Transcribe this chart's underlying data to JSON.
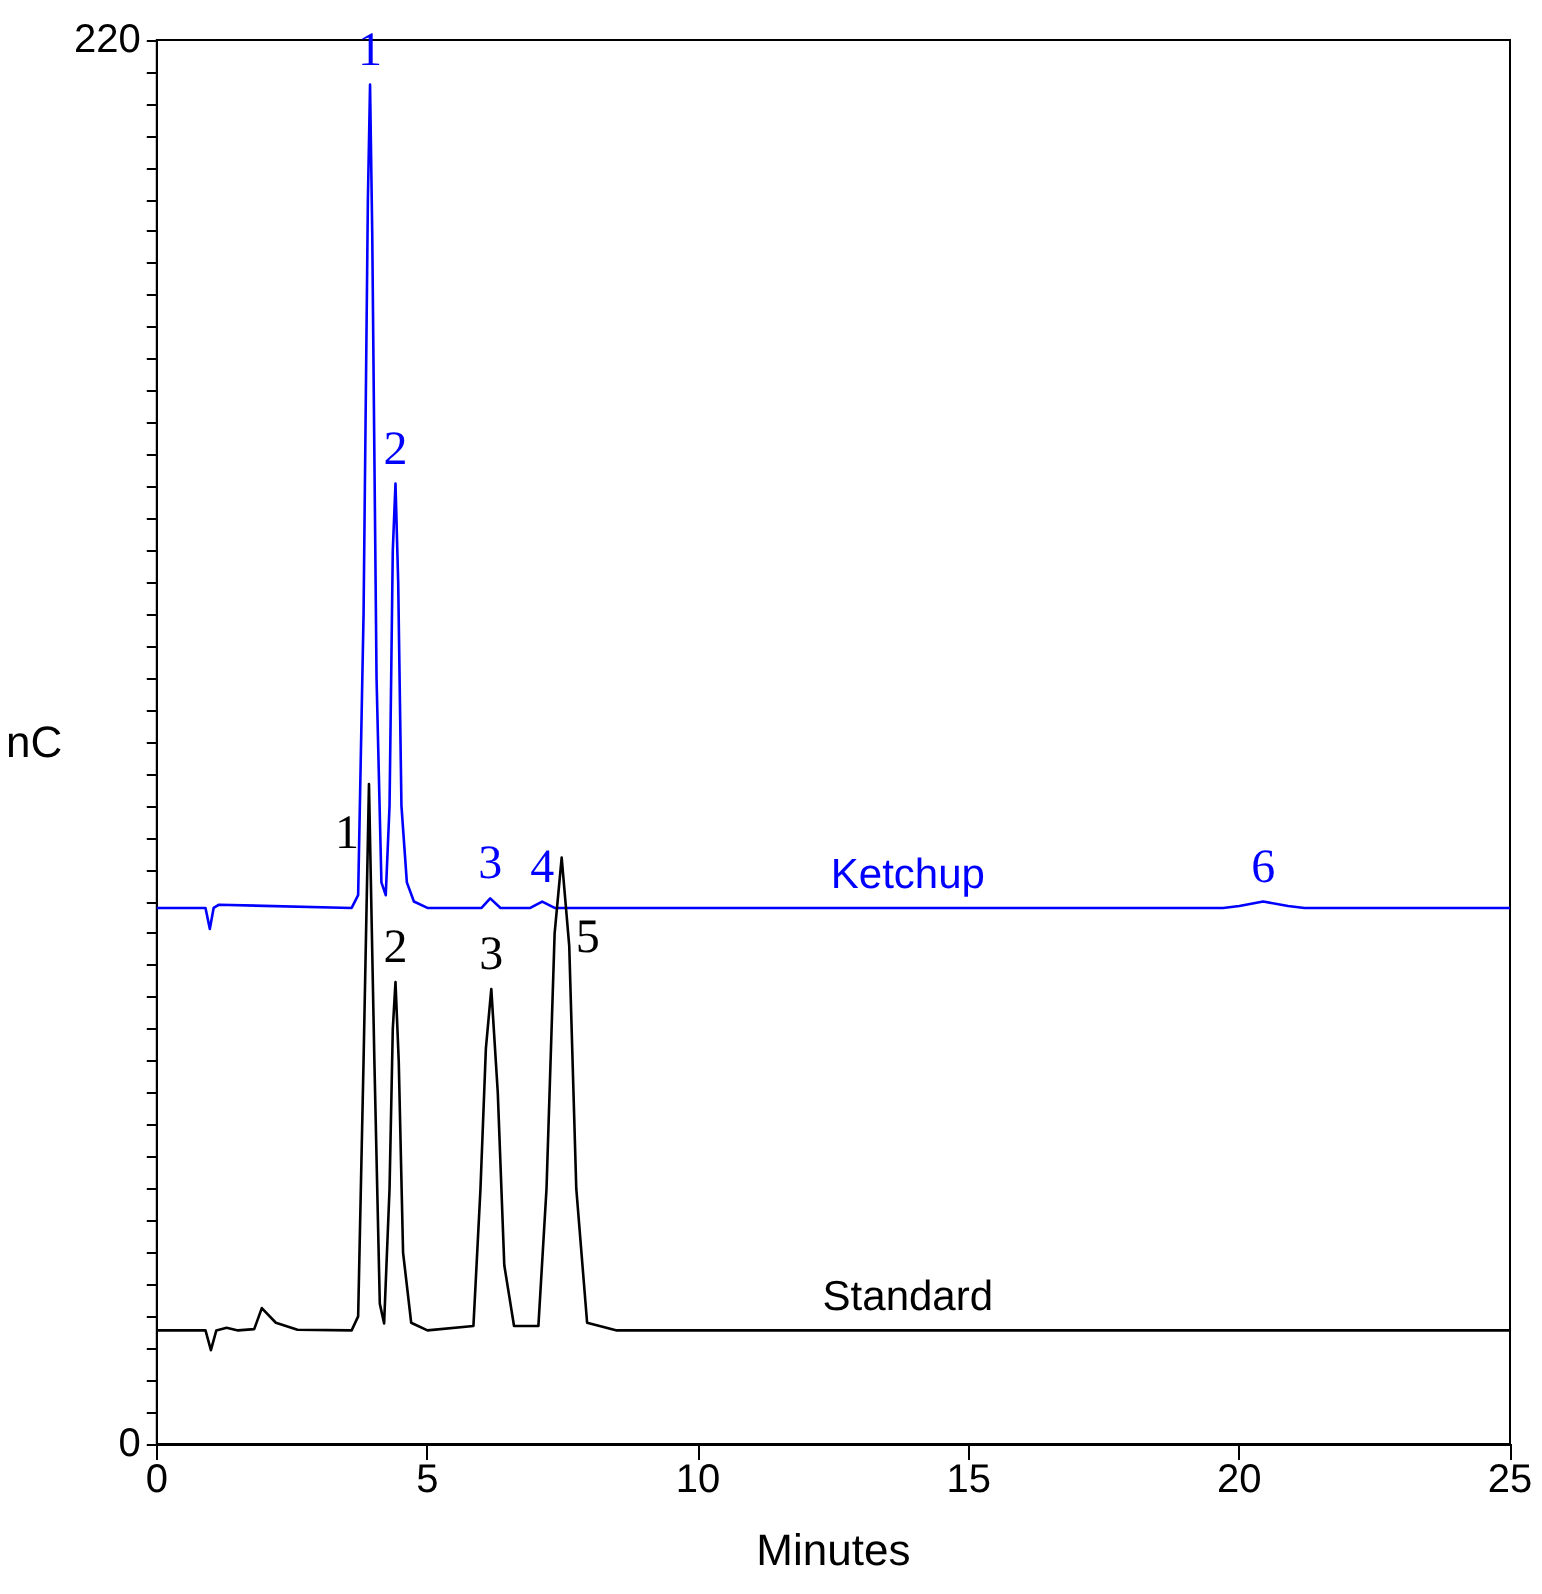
{
  "chart_data": {
    "type": "line",
    "xlabel": "Minutes",
    "ylabel": "nC",
    "xlim": [
      0,
      25
    ],
    "xticks": [
      0,
      5,
      10,
      15,
      20,
      25
    ],
    "ylim": [
      0,
      220
    ],
    "yticks": [
      0,
      {
        "value": 5,
        "label": null
      },
      {
        "value": 10,
        "label": null
      },
      {
        "value": 15,
        "label": null
      },
      {
        "value": 20,
        "label": null
      },
      {
        "value": 25,
        "label": null
      },
      {
        "value": 30,
        "label": null
      },
      {
        "value": 35,
        "label": null
      },
      {
        "value": 40,
        "label": null
      },
      {
        "value": 45,
        "label": null
      },
      {
        "value": 50,
        "label": null
      },
      {
        "value": 55,
        "label": null
      },
      {
        "value": 60,
        "label": null
      },
      {
        "value": 65,
        "label": null
      },
      {
        "value": 70,
        "label": null
      },
      {
        "value": 75,
        "label": null
      },
      {
        "value": 80,
        "label": null
      },
      {
        "value": 85,
        "label": null
      },
      {
        "value": 90,
        "label": null
      },
      {
        "value": 95,
        "label": null
      },
      {
        "value": 100,
        "label": null
      },
      {
        "value": 105,
        "label": null
      },
      {
        "value": 110,
        "label": null
      },
      {
        "value": 115,
        "label": null
      },
      {
        "value": 120,
        "label": null
      },
      {
        "value": 125,
        "label": null
      },
      {
        "value": 130,
        "label": null
      },
      {
        "value": 135,
        "label": null
      },
      {
        "value": 140,
        "label": null
      },
      {
        "value": 145,
        "label": null
      },
      {
        "value": 150,
        "label": null
      },
      {
        "value": 155,
        "label": null
      },
      {
        "value": 160,
        "label": null
      },
      {
        "value": 165,
        "label": null
      },
      {
        "value": 170,
        "label": null
      },
      {
        "value": 175,
        "label": null
      },
      {
        "value": 180,
        "label": null
      },
      {
        "value": 185,
        "label": null
      },
      {
        "value": 190,
        "label": null
      },
      {
        "value": 195,
        "label": null
      },
      {
        "value": 200,
        "label": null
      },
      {
        "value": 205,
        "label": null
      },
      {
        "value": 210,
        "label": null
      },
      {
        "value": 215,
        "label": null
      },
      220
    ],
    "grid": false,
    "legend": false,
    "marker": "none",
    "line_style": "solid",
    "annotations": [
      {
        "text": "1",
        "x": 3.94,
        "y": 213
      },
      {
        "text": "2",
        "x": 4.41,
        "y": 150.5
      },
      {
        "text": "3",
        "x": 6.16,
        "y": 85.5
      },
      {
        "text": "4",
        "x": 7.12,
        "y": 85
      },
      {
        "text": "6",
        "x": 20.44,
        "y": 85
      },
      {
        "text": "1",
        "x": 3.92,
        "y": 103.4
      },
      {
        "text": "2",
        "x": 4.41,
        "y": 72.4
      },
      {
        "text": "3",
        "x": 6.18,
        "y": 71.3
      },
      {
        "text": "5",
        "x": 7.48,
        "y": 91.9
      }
    ],
    "series": [
      {
        "name": "Ketchup",
        "color": "#0000ff",
        "x": [
          0,
          0.9,
          0.98,
          1.05,
          1.15,
          3.6,
          3.72,
          3.82,
          3.9,
          3.94,
          3.98,
          4.06,
          4.15,
          4.23,
          4.3,
          4.36,
          4.41,
          4.46,
          4.52,
          4.62,
          4.75,
          5.0,
          6.0,
          6.16,
          6.35,
          6.9,
          7.12,
          7.35,
          19.7,
          20.0,
          20.44,
          20.9,
          21.2,
          25
        ],
        "values": [
          84,
          84,
          80.7,
          84,
          84.5,
          84,
          86,
          130,
          195,
          213,
          190,
          120,
          88,
          86,
          100,
          140,
          150.5,
          135,
          100,
          88,
          85,
          84,
          84,
          85.5,
          84,
          84,
          85,
          84,
          84,
          84.3,
          85,
          84.3,
          84,
          84
        ]
      },
      {
        "name": "Standard",
        "color": "#000000",
        "x": [
          0,
          0.9,
          1.0,
          1.1,
          1.29,
          1.5,
          1.8,
          1.94,
          2.2,
          2.6,
          3.6,
          3.72,
          3.82,
          3.92,
          4.02,
          4.12,
          4.2,
          4.3,
          4.36,
          4.41,
          4.47,
          4.55,
          4.7,
          5.0,
          5.85,
          5.98,
          6.08,
          6.18,
          6.3,
          6.42,
          6.6,
          7.05,
          7.2,
          7.35,
          7.48,
          7.62,
          7.75,
          7.95,
          8.5,
          25
        ],
        "values": [
          17.8,
          17.8,
          14.7,
          17.8,
          18.2,
          17.8,
          18,
          21.3,
          19,
          17.9,
          17.8,
          20,
          60,
          103.4,
          60,
          22,
          18.9,
          40,
          65,
          72.4,
          60,
          30,
          19,
          17.8,
          18.5,
          40,
          62,
          71.3,
          55,
          28,
          18.5,
          18.5,
          40,
          80,
          91.9,
          78,
          40,
          19,
          17.8,
          17.8
        ]
      }
    ]
  }
}
